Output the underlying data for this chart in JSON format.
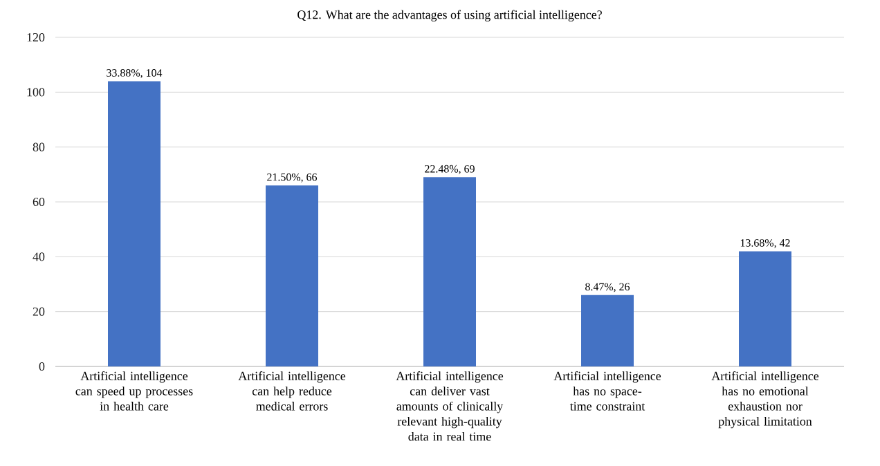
{
  "chart_data": {
    "type": "bar",
    "title": "Q12. What are the advantages of using artificial intelligence?",
    "categories": [
      "Artificial intelligence can speed up processes in health care",
      "Artificial intelligence can help reduce medical errors",
      "Artificial intelligence can deliver vast amounts of clinically relevant high-quality data in real time",
      "Artificial intelligence has no space-time constraint",
      "Artificial intelligence has no emotional exhaustion nor physical limitation"
    ],
    "values": [
      104,
      66,
      69,
      26,
      42
    ],
    "value_labels": [
      "33.88%, 104",
      "21.50%, 66",
      "22.48%, 69",
      "8.47%, 26",
      "13.68%, 42"
    ],
    "color": "#4472c4",
    "ylim": [
      0,
      120
    ],
    "yticks": [
      0,
      20,
      40,
      60,
      80,
      100,
      120
    ],
    "grid": "y"
  }
}
